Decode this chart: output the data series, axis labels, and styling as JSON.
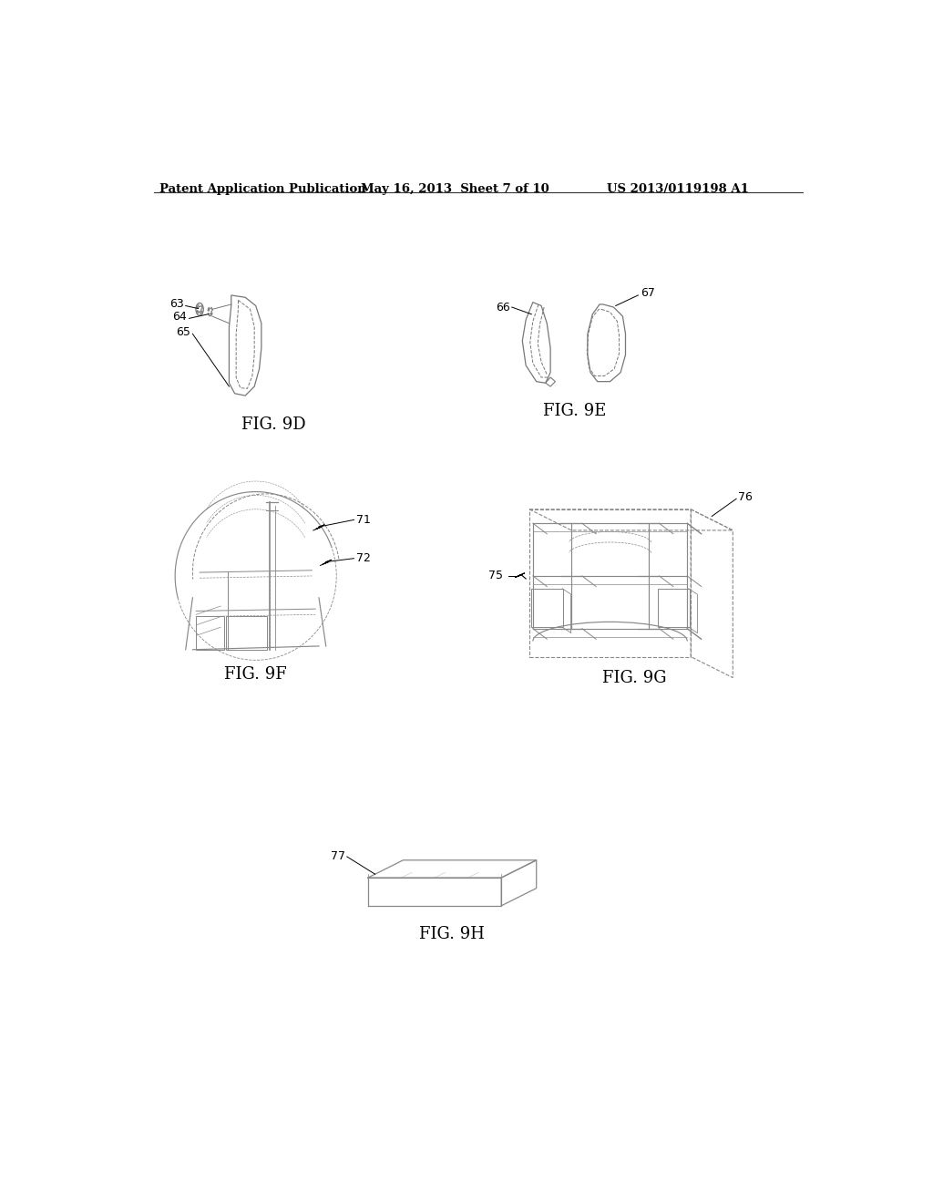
{
  "header_left": "Patent Application Publication",
  "header_mid": "May 16, 2013  Sheet 7 of 10",
  "header_right": "US 2013/0119198 A1",
  "fig9d_label": "FIG. 9D",
  "fig9e_label": "FIG. 9E",
  "fig9f_label": "FIG. 9F",
  "fig9g_label": "FIG. 9G",
  "fig9h_label": "FIG. 9H",
  "ref_63": "63",
  "ref_64": "64",
  "ref_65": "65",
  "ref_66": "66",
  "ref_67": "67",
  "ref_71": "71",
  "ref_72": "72",
  "ref_75": "75",
  "ref_76": "76",
  "ref_77": "77",
  "bg_color": "#ffffff",
  "line_color": "#333333",
  "text_color": "#000000",
  "header_fontsize": 9.5,
  "label_fontsize": 13,
  "ref_fontsize": 9
}
